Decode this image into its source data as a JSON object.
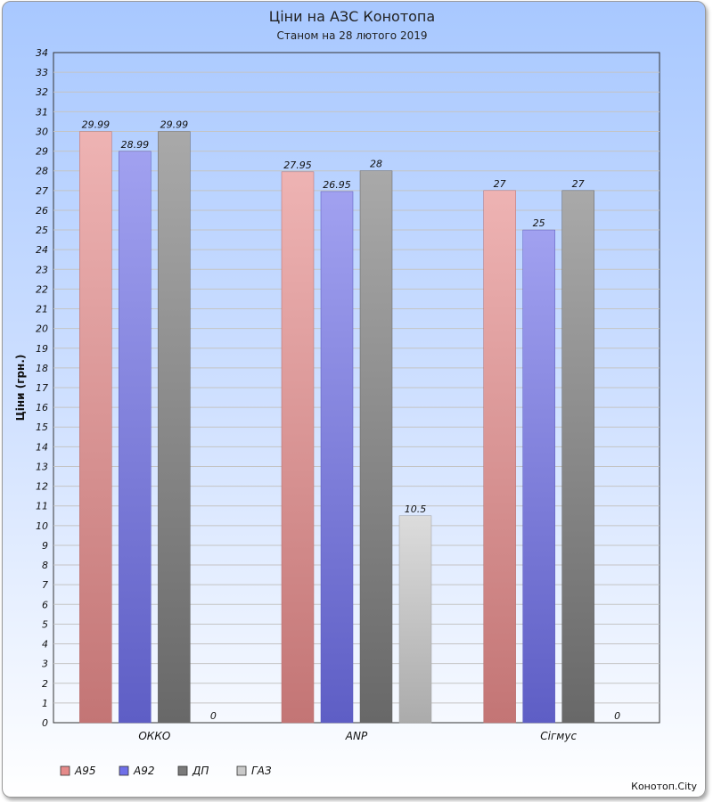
{
  "chart_data": {
    "type": "bar",
    "title": "Ціни на АЗС Конотопа",
    "subtitle": "Станом на 28 лютого 2019",
    "xlabel": "",
    "ylabel": "Ціни (грн.)",
    "ylim": [
      0,
      34
    ],
    "ytick_step": 1,
    "grid": true,
    "legend_position": "bottom-left",
    "categories": [
      "ОККО",
      "ANP",
      "Сігмус"
    ],
    "series": [
      {
        "name": "А95",
        "color": "#e58a8a",
        "values": [
          29.99,
          27.95,
          27
        ]
      },
      {
        "name": "А92",
        "color": "#6f6fe8",
        "values": [
          28.99,
          26.95,
          25
        ]
      },
      {
        "name": "ДП",
        "color": "#7a7a7a",
        "values": [
          29.99,
          28,
          27
        ]
      },
      {
        "name": "ГАЗ",
        "color": "#c9c9c9",
        "values": [
          0,
          10.5,
          0
        ]
      }
    ]
  },
  "credit": "Конотоп.City"
}
